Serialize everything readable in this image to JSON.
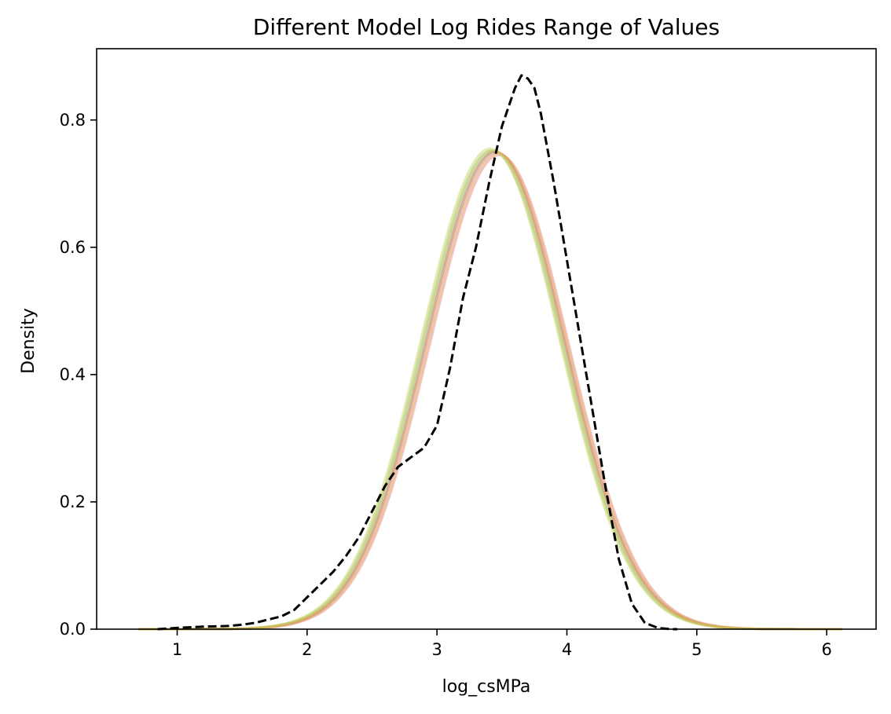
{
  "chart_data": {
    "type": "line",
    "title": "Different Model Log Rides Range of Values",
    "xlabel": "log_csMPa",
    "ylabel": "Density",
    "xlim": [
      0.38,
      6.38
    ],
    "ylim": [
      0,
      0.912
    ],
    "xticks": [
      1,
      2,
      3,
      4,
      5,
      6
    ],
    "yticks": [
      0.0,
      0.2,
      0.4,
      0.6,
      0.8
    ],
    "xtick_labels": [
      "1",
      "2",
      "3",
      "4",
      "5",
      "6"
    ],
    "ytick_labels": [
      "0.0",
      "0.2",
      "0.4",
      "0.6",
      "0.8"
    ],
    "grid": false,
    "legend": "none",
    "series": [
      {
        "style": "dashed",
        "color": "#000000",
        "x": [
          0.85,
          1.0,
          1.2,
          1.4,
          1.5,
          1.6,
          1.7,
          1.8,
          1.9,
          2.0,
          2.1,
          2.2,
          2.3,
          2.4,
          2.5,
          2.6,
          2.7,
          2.8,
          2.9,
          3.0,
          3.1,
          3.2,
          3.3,
          3.4,
          3.5,
          3.6,
          3.65,
          3.7,
          3.75,
          3.8,
          3.9,
          4.0,
          4.1,
          4.2,
          4.3,
          4.4,
          4.5,
          4.6,
          4.7,
          4.8,
          4.85
        ],
        "y": [
          0.0,
          0.002,
          0.004,
          0.005,
          0.007,
          0.01,
          0.015,
          0.02,
          0.03,
          0.05,
          0.07,
          0.09,
          0.115,
          0.145,
          0.185,
          0.225,
          0.255,
          0.27,
          0.285,
          0.32,
          0.41,
          0.52,
          0.6,
          0.7,
          0.79,
          0.85,
          0.87,
          0.865,
          0.85,
          0.81,
          0.7,
          0.58,
          0.46,
          0.34,
          0.22,
          0.11,
          0.04,
          0.01,
          0.002,
          0.0,
          0.0
        ]
      },
      {
        "style": "solid",
        "color": "#e8a0a8",
        "mean": 3.48,
        "sd": 0.53,
        "peak": 0.745
      },
      {
        "style": "solid",
        "color": "#9fc3e6",
        "mean": 3.44,
        "sd": 0.53,
        "peak": 0.75
      },
      {
        "style": "solid",
        "color": "#a7d8a0",
        "mean": 3.42,
        "sd": 0.53,
        "peak": 0.752
      },
      {
        "style": "solid",
        "color": "#c9a9d6",
        "mean": 3.46,
        "sd": 0.53,
        "peak": 0.748
      },
      {
        "style": "solid",
        "color": "#d6dc82",
        "mean": 3.41,
        "sd": 0.53,
        "peak": 0.755
      },
      {
        "style": "solid",
        "color": "#f0b86e",
        "mean": 3.47,
        "sd": 0.53,
        "peak": 0.747
      },
      {
        "style": "solid",
        "color": "#d98c4a",
        "mean": 3.45,
        "sd": 0.53,
        "peak": 0.75
      },
      {
        "style": "solid",
        "color": "#c8c85a",
        "mean": 3.43,
        "sd": 0.53,
        "peak": 0.752
      }
    ]
  }
}
